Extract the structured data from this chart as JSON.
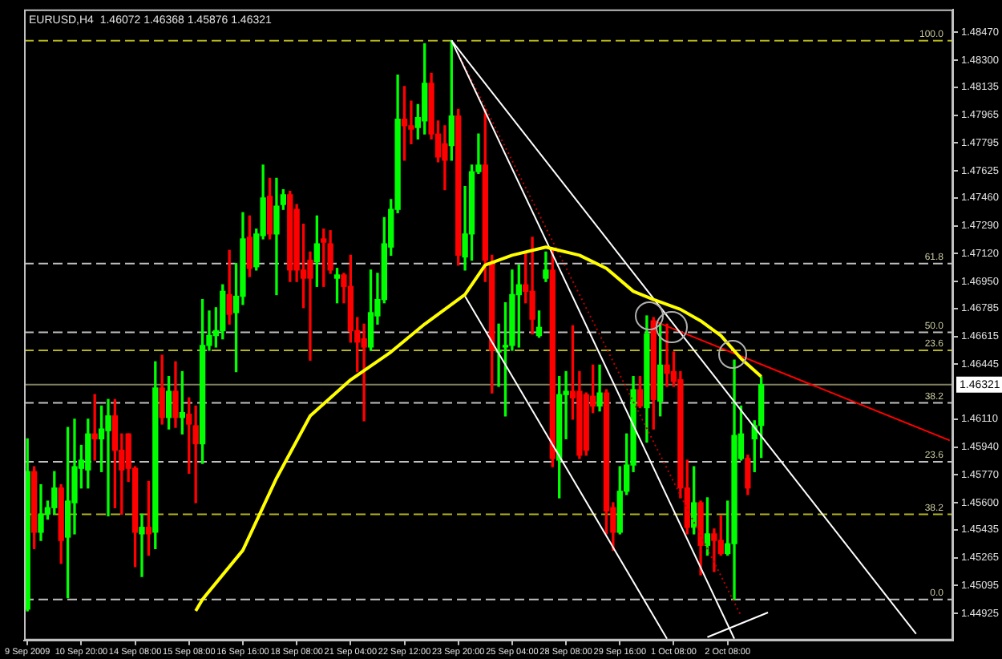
{
  "chart_data": {
    "type": "candlestick",
    "title": "EURUSD,H4  1.46072 1.46368 1.45876 1.46321",
    "categories": [
      "9 Sep 2009",
      null,
      null,
      null,
      null,
      null,
      null,
      null,
      "10 Sep 20:00",
      null,
      null,
      null,
      null,
      null,
      null,
      null,
      "14 Sep 08:00",
      null,
      null,
      null,
      null,
      null,
      null,
      null,
      "15 Sep 08:00",
      null,
      null,
      null,
      null,
      null,
      null,
      null,
      "16 Sep 16:00",
      null,
      null,
      null,
      null,
      null,
      null,
      null,
      "18 Sep 08:00",
      null,
      null,
      null,
      null,
      null,
      null,
      null,
      "21 Sep 04:00",
      null,
      null,
      null,
      null,
      null,
      null,
      null,
      "22 Sep 12:00",
      null,
      null,
      null,
      null,
      null,
      null,
      null,
      "23 Sep 20:00",
      null,
      null,
      null,
      null,
      null,
      null,
      null,
      "25 Sep 04:00",
      null,
      null,
      null,
      null,
      null,
      null,
      null,
      "28 Sep 08:00",
      null,
      null,
      null,
      null,
      null,
      null,
      null,
      "29 Sep 16:00",
      null,
      null,
      null,
      null,
      null,
      null,
      null,
      "1 Oct 08:00",
      null,
      null,
      null,
      null,
      null,
      null,
      null,
      "2 Oct 08:00",
      null,
      null,
      null,
      null,
      null,
      null,
      null,
      null,
      null,
      null,
      null,
      null,
      null,
      null,
      null,
      null,
      null,
      null,
      null,
      null,
      null,
      null,
      null,
      null,
      null,
      null,
      null,
      null,
      null,
      null,
      null,
      null,
      null
    ],
    "ohlc": [
      [
        1.4495,
        1.4599,
        1.4494,
        1.4579
      ],
      [
        1.4579,
        1.4582,
        1.4532,
        1.4542
      ],
      [
        1.4542,
        1.4571,
        1.4537,
        1.4553
      ],
      [
        1.4553,
        1.4561,
        1.455,
        1.4557
      ],
      [
        1.4557,
        1.4579,
        1.4553,
        1.4569
      ],
      [
        1.4569,
        1.4571,
        1.4523,
        1.4537
      ],
      [
        1.4539,
        1.4606,
        1.4502,
        1.4561
      ],
      [
        1.456,
        1.4611,
        1.4541,
        1.4582
      ],
      [
        1.4581,
        1.4595,
        1.4569,
        1.4586
      ],
      [
        1.458,
        1.4611,
        1.4569,
        1.4602
      ],
      [
        1.4602,
        1.4626,
        1.4586,
        1.4599
      ],
      [
        1.4599,
        1.4619,
        1.4579,
        1.4605
      ],
      [
        1.4604,
        1.4623,
        1.4552,
        1.4613
      ],
      [
        1.4613,
        1.4623,
        1.4557,
        1.4592
      ],
      [
        1.4592,
        1.4602,
        1.4553,
        1.458
      ],
      [
        1.4602,
        1.4602,
        1.4573,
        1.4581
      ],
      [
        1.4581,
        1.4582,
        1.4521,
        1.4542
      ],
      [
        1.4541,
        1.4553,
        1.4515,
        1.4545
      ],
      [
        1.4545,
        1.4573,
        1.4528,
        1.4541
      ],
      [
        1.4542,
        1.4646,
        1.4532,
        1.463
      ],
      [
        1.463,
        1.465,
        1.4608,
        1.4612
      ],
      [
        1.4612,
        1.4637,
        1.4605,
        1.4628
      ],
      [
        1.4628,
        1.4646,
        1.4606,
        1.4612
      ],
      [
        1.4612,
        1.464,
        1.4602,
        1.4615
      ],
      [
        1.4614,
        1.4624,
        1.4578,
        1.4608
      ],
      [
        1.4607,
        1.4619,
        1.456,
        1.4596
      ],
      [
        1.4596,
        1.4684,
        1.4584,
        1.4656
      ],
      [
        1.4656,
        1.4677,
        1.4653,
        1.4662
      ],
      [
        1.4662,
        1.4679,
        1.4655,
        1.4665
      ],
      [
        1.4665,
        1.4693,
        1.466,
        1.4689
      ],
      [
        1.4687,
        1.4714,
        1.4669,
        1.4675
      ],
      [
        1.4676,
        1.4706,
        1.464,
        1.4686
      ],
      [
        1.4686,
        1.4737,
        1.4681,
        1.4721
      ],
      [
        1.4722,
        1.4735,
        1.4698,
        1.4703
      ],
      [
        1.4704,
        1.4727,
        1.4702,
        1.4724
      ],
      [
        1.4723,
        1.4766,
        1.4721,
        1.4746
      ],
      [
        1.4747,
        1.4758,
        1.4721,
        1.4724
      ],
      [
        1.4724,
        1.4758,
        1.4687,
        1.4741
      ],
      [
        1.4742,
        1.4751,
        1.4739,
        1.4748
      ],
      [
        1.4748,
        1.475,
        1.4695,
        1.4702
      ],
      [
        1.4739,
        1.4742,
        1.4695,
        1.4702
      ],
      [
        1.4702,
        1.473,
        1.4679,
        1.4697
      ],
      [
        1.4708,
        1.4713,
        1.4647,
        1.4697
      ],
      [
        1.4707,
        1.4735,
        1.4692,
        1.4718
      ],
      [
        1.4721,
        1.4727,
        1.4692,
        1.4719
      ],
      [
        1.4718,
        1.4726,
        1.47,
        1.4702
      ],
      [
        1.4697,
        1.4703,
        1.4682,
        1.4699
      ],
      [
        1.4699,
        1.47,
        1.4682,
        1.4692
      ],
      [
        1.4692,
        1.4711,
        1.4658,
        1.4665
      ],
      [
        1.4665,
        1.4673,
        1.464,
        1.4658
      ],
      [
        1.466,
        1.4669,
        1.461,
        1.4655
      ],
      [
        1.4655,
        1.4702,
        1.4653,
        1.4676
      ],
      [
        1.4674,
        1.47,
        1.4669,
        1.4684
      ],
      [
        1.4684,
        1.4734,
        1.4682,
        1.4718
      ],
      [
        1.4716,
        1.4745,
        1.4711,
        1.4739
      ],
      [
        1.4739,
        1.4821,
        1.4737,
        1.4794
      ],
      [
        1.4794,
        1.4814,
        1.4769,
        1.479
      ],
      [
        1.479,
        1.4805,
        1.4779,
        1.4788
      ],
      [
        1.4789,
        1.4803,
        1.4782,
        1.4795
      ],
      [
        1.4793,
        1.484,
        1.4785,
        1.4816
      ],
      [
        1.4816,
        1.4822,
        1.4782,
        1.4785
      ],
      [
        1.4785,
        1.4793,
        1.4768,
        1.4771
      ],
      [
        1.4779,
        1.479,
        1.4751,
        1.4769
      ],
      [
        1.4778,
        1.4842,
        1.4769,
        1.4796
      ],
      [
        1.4796,
        1.48,
        1.4705,
        1.4711
      ],
      [
        1.471,
        1.4753,
        1.4702,
        1.4724
      ],
      [
        1.4724,
        1.4766,
        1.4708,
        1.4762
      ],
      [
        1.4762,
        1.4785,
        1.4761,
        1.4766
      ],
      [
        1.4766,
        1.48,
        1.4695,
        1.4708
      ],
      [
        1.4706,
        1.4711,
        1.4627,
        1.4653
      ],
      [
        1.4652,
        1.4669,
        1.4631,
        1.4653
      ],
      [
        1.4655,
        1.4682,
        1.4613,
        1.4656
      ],
      [
        1.4656,
        1.4702,
        1.4653,
        1.4687
      ],
      [
        1.4687,
        1.4705,
        1.4655,
        1.4693
      ],
      [
        1.4693,
        1.4713,
        1.4682,
        1.4689
      ],
      [
        1.4689,
        1.4722,
        1.4663,
        1.4672
      ],
      [
        1.4662,
        1.4677,
        1.4661,
        1.4667
      ],
      [
        1.4697,
        1.4713,
        1.4695,
        1.4702
      ],
      [
        1.4702,
        1.4714,
        1.4582,
        1.4587
      ],
      [
        1.4586,
        1.4637,
        1.4563,
        1.4626
      ],
      [
        1.4626,
        1.464,
        1.4599,
        1.4628
      ],
      [
        1.4628,
        1.4668,
        1.4611,
        1.4624
      ],
      [
        1.4628,
        1.464,
        1.4587,
        1.4589
      ],
      [
        1.4626,
        1.4627,
        1.4589,
        1.4592
      ],
      [
        1.4625,
        1.4644,
        1.4615,
        1.4619
      ],
      [
        1.4619,
        1.4644,
        1.4616,
        1.4627
      ],
      [
        1.4627,
        1.4629,
        1.4541,
        1.4555
      ],
      [
        1.4557,
        1.456,
        1.4531,
        1.4542
      ],
      [
        1.4542,
        1.4582,
        1.4541,
        1.4567
      ],
      [
        1.4567,
        1.4602,
        1.4565,
        1.4583
      ],
      [
        1.4583,
        1.4637,
        1.4579,
        1.4629
      ],
      [
        1.4629,
        1.4637,
        1.4618,
        1.4619
      ],
      [
        1.4618,
        1.4674,
        1.4597,
        1.4663
      ],
      [
        1.4671,
        1.4673,
        1.4605,
        1.4623
      ],
      [
        1.4622,
        1.4669,
        1.4613,
        1.4644
      ],
      [
        1.4644,
        1.4669,
        1.4631,
        1.4639
      ],
      [
        1.464,
        1.4652,
        1.4631,
        1.4634
      ],
      [
        1.4635,
        1.464,
        1.4563,
        1.4569
      ],
      [
        1.4569,
        1.4586,
        1.4541,
        1.4545
      ],
      [
        1.4545,
        1.4582,
        1.4541,
        1.456
      ],
      [
        1.456,
        1.4561,
        1.4516,
        1.4534
      ],
      [
        1.4534,
        1.4563,
        1.4528,
        1.4541
      ],
      [
        1.4541,
        1.4544,
        1.4518,
        1.4537
      ],
      [
        1.4537,
        1.4552,
        1.4528,
        1.4529
      ],
      [
        1.4529,
        1.4561,
        1.4528,
        1.4535
      ],
      [
        1.4535,
        1.4647,
        1.4501,
        1.4601
      ],
      [
        1.4587,
        1.4619,
        1.4586,
        1.4602
      ],
      [
        1.4587,
        1.4589,
        1.4565,
        1.4569
      ],
      [
        1.4599,
        1.461,
        1.4579,
        1.4607
      ],
      [
        1.46072,
        1.46368,
        1.45876,
        1.46321
      ],
      null,
      null,
      null,
      null,
      null,
      null,
      null,
      null,
      null,
      null,
      null,
      null,
      null,
      null,
      null,
      null,
      null,
      null,
      null,
      null,
      null,
      null,
      null,
      null,
      null,
      null,
      null,
      null
    ],
    "colors": [
      "#00ff00",
      "#ff0000",
      "#00ff00",
      "#00ff00",
      "#00ff00",
      "#ff0000",
      "#00ff00",
      "#00ff00",
      "#00ff00",
      "#00ff00",
      "#ff0000",
      "#00ff00",
      "#00ff00",
      "#ff0000",
      "#ff0000",
      "#ff0000",
      "#ff0000",
      "#00ff00",
      "#ff0000",
      "#00ff00",
      "#ff0000",
      "#00ff00",
      "#ff0000",
      "#00ff00",
      "#ff0000",
      "#ff0000",
      "#00ff00",
      "#00ff00",
      "#00ff00",
      "#00ff00",
      "#ff0000",
      "#00ff00",
      "#00ff00",
      "#ff0000",
      "#00ff00",
      "#00ff00",
      "#ff0000",
      "#00ff00",
      "#00ff00",
      "#ff0000",
      "#ff0000",
      "#ff0000",
      "#ff0000",
      "#00ff00",
      "#ff0000",
      "#ff0000",
      "#00ff00",
      "#ff0000",
      "#ff0000",
      "#ff0000",
      "#ff0000",
      "#00ff00",
      "#00ff00",
      "#00ff00",
      "#00ff00",
      "#00ff00",
      "#ff0000",
      "#ff0000",
      "#00ff00",
      "#00ff00",
      "#ff0000",
      "#ff0000",
      "#ff0000",
      "#00ff00",
      "#ff0000",
      "#00ff00",
      "#00ff00",
      "#00ff00",
      "#ff0000",
      "#ff0000",
      "#00ff00",
      "#00ff00",
      "#00ff00",
      "#00ff00",
      "#ff0000",
      "#ff0000",
      "#00ff00",
      "#00ff00",
      "#ff0000",
      "#00ff00",
      "#00ff00",
      "#ff0000",
      "#ff0000",
      "#ff0000",
      "#ff0000",
      "#00ff00",
      "#ff0000",
      "#ff0000",
      "#00ff00",
      "#00ff00",
      "#00ff00",
      "#ff0000",
      "#00ff00",
      "#ff0000",
      "#00ff00",
      "#ff0000",
      "#ff0000",
      "#ff0000",
      "#ff0000",
      "#00ff00",
      "#ff0000",
      "#00ff00",
      "#ff0000",
      "#ff0000",
      "#00ff00",
      "#00ff00",
      "#00ff00",
      "#ff0000",
      "#00ff00",
      "#00ff00",
      null,
      null,
      null,
      null,
      null,
      null,
      null,
      null,
      null,
      null,
      null,
      null,
      null,
      null,
      null,
      null,
      null,
      null,
      null,
      null,
      null,
      null,
      null,
      null,
      null,
      null,
      null,
      null
    ],
    "series": [
      {
        "type": "line",
        "color": "#ffff00",
        "line_style": "solid",
        "values": [
          null,
          null,
          null,
          null,
          null,
          null,
          null,
          null,
          null,
          null,
          null,
          null,
          null,
          null,
          null,
          null,
          null,
          null,
          null,
          null,
          null,
          null,
          null,
          null,
          null,
          1.4494,
          1.4501,
          null,
          null,
          null,
          null,
          null,
          1.4531,
          null,
          null,
          null,
          null,
          1.4575,
          null,
          null,
          null,
          null,
          1.4613,
          null,
          null,
          null,
          null,
          null,
          1.4635,
          null,
          null,
          null,
          null,
          null,
          1.4652,
          null,
          null,
          null,
          null,
          1.4669,
          null,
          null,
          null,
          null,
          null,
          1.4687,
          null,
          null,
          1.4705,
          null,
          null,
          null,
          1.4711,
          null,
          null,
          null,
          null,
          1.4716,
          null,
          null,
          null,
          null,
          1.4711,
          null,
          null,
          null,
          1.4703,
          null,
          null,
          null,
          1.4689,
          null,
          null,
          1.4684,
          null,
          null,
          null,
          1.4678,
          null,
          null,
          1.4671,
          null,
          null,
          1.4662,
          null,
          null,
          1.4648,
          null,
          null,
          1.4637,
          null,
          null,
          null,
          null,
          null,
          null,
          null,
          null,
          null,
          null,
          null,
          null,
          null,
          null,
          null,
          null,
          null,
          null,
          null,
          null,
          null,
          null,
          null,
          null,
          null,
          null,
          null,
          null
        ]
      },
      {
        "type": "line",
        "color": "#ffffff",
        "line_style": "solid",
        "values": [
          null,
          null,
          null,
          null,
          null,
          null,
          null,
          null,
          null,
          null,
          null,
          null,
          null,
          null,
          null,
          null,
          null,
          null,
          null,
          null,
          null,
          null,
          null,
          null,
          null,
          null,
          null,
          null,
          null,
          null,
          null,
          null,
          null,
          null,
          null,
          null,
          null,
          null,
          null,
          null,
          null,
          null,
          null,
          null,
          null,
          null,
          null,
          null,
          null,
          null,
          null,
          null,
          null,
          null,
          null,
          null,
          null,
          null,
          null,
          null,
          null,
          null,
          null,
          1.4842,
          null,
          null,
          null,
          null,
          null,
          null,
          null,
          null,
          null,
          null,
          null,
          null,
          null,
          null,
          null,
          null,
          null,
          null,
          null,
          null,
          null,
          null,
          null,
          null,
          null,
          null,
          null,
          null,
          null,
          null,
          null,
          null,
          null,
          null,
          null,
          null,
          null,
          null,
          null,
          null,
          null,
          null,
          null,
          null,
          null,
          null,
          null,
          null,
          null,
          null,
          null,
          null,
          null,
          null,
          null,
          null,
          null,
          null,
          null,
          null,
          null,
          null,
          null,
          null,
          null,
          null,
          null,
          null,
          1.448,
          null,
          null,
          null,
          null,
          null
        ]
      },
      {
        "type": "line",
        "color": "#ffffff",
        "line_style": "solid",
        "values": [
          null,
          null,
          null,
          null,
          null,
          null,
          null,
          null,
          null,
          null,
          null,
          null,
          null,
          null,
          null,
          null,
          null,
          null,
          null,
          null,
          null,
          null,
          null,
          null,
          null,
          null,
          null,
          null,
          null,
          null,
          null,
          null,
          null,
          null,
          null,
          null,
          null,
          null,
          null,
          null,
          null,
          null,
          null,
          null,
          null,
          null,
          null,
          null,
          null,
          null,
          null,
          null,
          null,
          null,
          null,
          null,
          null,
          null,
          null,
          null,
          null,
          null,
          null,
          1.4842,
          null,
          null,
          null,
          null,
          null,
          null,
          null,
          null,
          null,
          null,
          null,
          null,
          null,
          null,
          null,
          null,
          null,
          null,
          null,
          null,
          null,
          null,
          null,
          null,
          null,
          null,
          null,
          null,
          null,
          null,
          null,
          null,
          null,
          null,
          null,
          null,
          null,
          null,
          null,
          null,
          null,
          1.4477,
          null,
          null,
          null,
          null,
          null,
          null,
          null,
          null,
          null,
          null,
          null,
          null,
          null,
          null,
          null,
          null,
          null,
          null,
          null,
          null,
          null,
          null,
          null,
          null,
          null,
          null,
          null,
          null,
          null,
          null,
          null,
          null
        ]
      },
      {
        "type": "line",
        "color": "#ffffff",
        "line_style": "solid",
        "values": [
          null,
          null,
          null,
          null,
          null,
          null,
          null,
          null,
          null,
          null,
          null,
          null,
          null,
          null,
          null,
          null,
          null,
          null,
          null,
          null,
          null,
          null,
          null,
          null,
          null,
          null,
          null,
          null,
          null,
          null,
          null,
          null,
          null,
          null,
          null,
          null,
          null,
          null,
          null,
          null,
          null,
          null,
          null,
          null,
          null,
          null,
          null,
          null,
          null,
          null,
          null,
          null,
          null,
          null,
          null,
          null,
          null,
          null,
          null,
          null,
          null,
          null,
          null,
          null,
          null,
          1.4686,
          null,
          null,
          null,
          null,
          null,
          null,
          null,
          null,
          null,
          null,
          null,
          null,
          null,
          null,
          null,
          null,
          null,
          null,
          null,
          null,
          null,
          null,
          null,
          null,
          null,
          null,
          null,
          null,
          null,
          1.4477,
          null,
          null,
          null,
          null,
          null,
          null,
          null,
          null,
          null,
          null,
          null,
          null,
          null,
          null,
          null,
          null,
          null,
          null,
          null,
          null,
          null,
          null,
          null,
          null,
          null,
          null,
          null,
          null,
          null,
          null,
          null,
          null,
          null,
          null,
          null,
          null,
          null,
          null,
          null,
          null,
          null,
          null
        ]
      },
      {
        "type": "line",
        "color": "#ffffff",
        "line_style": "solid",
        "values": [
          null,
          null,
          null,
          null,
          null,
          null,
          null,
          null,
          null,
          null,
          null,
          null,
          null,
          null,
          null,
          null,
          null,
          null,
          null,
          null,
          null,
          null,
          null,
          null,
          null,
          null,
          null,
          null,
          null,
          null,
          null,
          null,
          null,
          null,
          null,
          null,
          null,
          null,
          null,
          null,
          null,
          null,
          null,
          null,
          null,
          null,
          null,
          null,
          null,
          null,
          null,
          null,
          null,
          null,
          null,
          null,
          null,
          null,
          null,
          null,
          null,
          null,
          null,
          null,
          null,
          null,
          null,
          null,
          null,
          null,
          null,
          null,
          null,
          null,
          null,
          null,
          null,
          null,
          null,
          null,
          null,
          null,
          null,
          null,
          null,
          null,
          null,
          null,
          null,
          null,
          null,
          null,
          null,
          null,
          null,
          null,
          null,
          null,
          null,
          null,
          null,
          1.4478,
          null,
          null,
          null,
          null,
          null,
          null,
          null,
          null,
          1.4493,
          null,
          null,
          null,
          null,
          null,
          null,
          null,
          null,
          null,
          null,
          null,
          null,
          null,
          null,
          null,
          null,
          null,
          null,
          null,
          null,
          null,
          null,
          null,
          null,
          null,
          null,
          null
        ]
      },
      {
        "type": "line",
        "color": "#ff0000",
        "line_style": "solid",
        "values": [
          null,
          null,
          null,
          null,
          null,
          null,
          null,
          null,
          null,
          null,
          null,
          null,
          null,
          null,
          null,
          null,
          null,
          null,
          null,
          null,
          null,
          null,
          null,
          null,
          null,
          null,
          null,
          null,
          null,
          null,
          null,
          null,
          null,
          null,
          null,
          null,
          null,
          null,
          null,
          null,
          null,
          null,
          null,
          null,
          null,
          null,
          null,
          null,
          null,
          null,
          null,
          null,
          null,
          null,
          null,
          null,
          null,
          null,
          null,
          null,
          null,
          null,
          null,
          null,
          null,
          null,
          null,
          null,
          null,
          null,
          null,
          null,
          null,
          null,
          null,
          null,
          null,
          null,
          null,
          null,
          null,
          null,
          null,
          null,
          null,
          null,
          null,
          null,
          null,
          null,
          null,
          null,
          null,
          1.4671,
          null,
          null,
          null,
          null,
          null,
          null,
          null,
          null,
          null,
          null,
          null,
          null,
          null,
          null,
          null,
          null,
          null,
          null,
          null,
          null,
          null,
          null,
          null,
          null,
          null,
          null,
          null,
          null,
          null,
          null,
          null,
          null,
          null,
          null,
          null,
          null,
          null,
          null,
          null,
          null,
          null,
          null,
          null,
          1.4598
        ]
      },
      {
        "type": "line",
        "color": "#c00000",
        "line_style": "dotted",
        "values": [
          null,
          null,
          null,
          null,
          null,
          null,
          null,
          null,
          null,
          null,
          null,
          null,
          null,
          null,
          null,
          null,
          null,
          null,
          null,
          null,
          null,
          null,
          null,
          null,
          null,
          null,
          null,
          null,
          null,
          null,
          null,
          null,
          null,
          null,
          null,
          null,
          null,
          null,
          null,
          null,
          null,
          null,
          null,
          null,
          null,
          null,
          null,
          null,
          null,
          null,
          null,
          null,
          null,
          null,
          null,
          null,
          null,
          null,
          null,
          null,
          null,
          null,
          null,
          null,
          1.4834,
          null,
          null,
          null,
          null,
          null,
          null,
          null,
          null,
          null,
          null,
          null,
          null,
          null,
          null,
          null,
          null,
          null,
          null,
          null,
          null,
          null,
          null,
          null,
          null,
          null,
          null,
          null,
          null,
          null,
          null,
          null,
          null,
          null,
          null,
          null,
          null,
          null,
          null,
          null,
          null,
          null,
          1.4491,
          null,
          null,
          null,
          null,
          null,
          null,
          null,
          null,
          null,
          null,
          null,
          null,
          null,
          null,
          null,
          null,
          null,
          null,
          null,
          null,
          null,
          null,
          null,
          null,
          null,
          null,
          null,
          null,
          null,
          null,
          null
        ]
      }
    ],
    "ylim": [
      1.4476,
      1.4861
    ],
    "yticks": [
      {
        "value": 1.4847,
        "label": "1.48470"
      },
      {
        "value": 1.483,
        "label": "1.48300"
      },
      {
        "value": 1.48135,
        "label": "1.48135"
      },
      {
        "value": 1.47965,
        "label": "1.47965"
      },
      {
        "value": 1.47795,
        "label": "1.47795"
      },
      {
        "value": 1.47625,
        "label": "1.47625"
      },
      {
        "value": 1.4746,
        "label": "1.47460"
      },
      {
        "value": 1.4729,
        "label": "1.47290"
      },
      {
        "value": 1.4712,
        "label": "1.47120"
      },
      {
        "value": 1.4695,
        "label": "1.46950"
      },
      {
        "value": 1.46785,
        "label": "1.46785"
      },
      {
        "value": 1.46615,
        "label": "1.46615"
      },
      {
        "value": 1.46445,
        "label": "1.46445"
      },
      {
        "value": 1.4611,
        "label": "1.46110"
      },
      {
        "value": 1.4594,
        "label": "1.45940"
      },
      {
        "value": 1.4577,
        "label": "1.45770"
      },
      {
        "value": 1.456,
        "label": "1.45600"
      },
      {
        "value": 1.45435,
        "label": "1.45435"
      },
      {
        "value": 1.45265,
        "label": "1.45265"
      },
      {
        "value": 1.45095,
        "label": "1.45095"
      },
      {
        "value": 1.44925,
        "label": "1.44925"
      }
    ],
    "ref_lines": [
      {
        "axis": "y",
        "value": 1.4842,
        "color": "#b4b41e",
        "line_style": "dashed"
      },
      {
        "axis": "y",
        "value": 1.4706,
        "color": "#c0c0c0",
        "line_style": "dashed"
      },
      {
        "axis": "y",
        "value": 1.4664,
        "color": "#c0c0c0",
        "line_style": "dashed"
      },
      {
        "axis": "y",
        "value": 1.4653,
        "color": "#b4b41e",
        "line_style": "dashed"
      },
      {
        "axis": "y",
        "value": 1.4621,
        "color": "#c0c0c0",
        "line_style": "dashed"
      },
      {
        "axis": "y",
        "value": 1.4585,
        "color": "#c0c0c0",
        "line_style": "dashed"
      },
      {
        "axis": "y",
        "value": 1.4553,
        "color": "#b4b41e",
        "line_style": "dashed"
      },
      {
        "axis": "y",
        "value": 1.4501,
        "color": "#c0c0c0",
        "line_style": "dashed"
      },
      {
        "axis": "y",
        "value": 1.46321,
        "label": "1.46321",
        "color": "#808060",
        "line_style": "solid"
      }
    ],
    "annotations": [
      {
        "text": "100.0",
        "y": 1.4842
      },
      {
        "text": "61.8",
        "y": 1.4706
      },
      {
        "text": "50.0",
        "y": 1.4664
      },
      {
        "text": "23.6",
        "y": 1.4653
      },
      {
        "text": "38.2",
        "y": 1.4621
      },
      {
        "text": "23.6",
        "y": 1.4585
      },
      {
        "text": "38.2",
        "y": 1.4553
      },
      {
        "text": "0.0",
        "y": 1.4501
      }
    ],
    "grid": false,
    "legend": false,
    "marker": "none"
  }
}
